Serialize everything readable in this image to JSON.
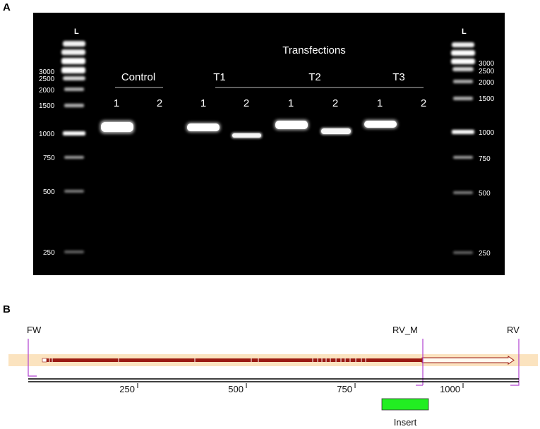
{
  "panel_a": {
    "letter": "A",
    "ladder_left_label": "L",
    "ladder_right_label": "L",
    "ladder_sizes": [
      "3000",
      "2500",
      "2000",
      "1500",
      "1000",
      "750",
      "500",
      "250"
    ],
    "group_control": "Control",
    "group_transfections": "Transfections",
    "groups": [
      "T1",
      "T2",
      "T3"
    ],
    "lane_labels": [
      "1",
      "2",
      "1",
      "2",
      "1",
      "2",
      "1",
      "2"
    ]
  },
  "panel_b": {
    "letter": "B",
    "primers": [
      "FW",
      "RV_M",
      "RV"
    ],
    "scale_ticks": [
      "250",
      "500",
      "750",
      "1000"
    ],
    "insert_label": "Insert",
    "colors": {
      "track": "#fbe3bf",
      "feature": "#9b1a12",
      "insert": "#22ee22",
      "primer": "#b040d0"
    }
  }
}
